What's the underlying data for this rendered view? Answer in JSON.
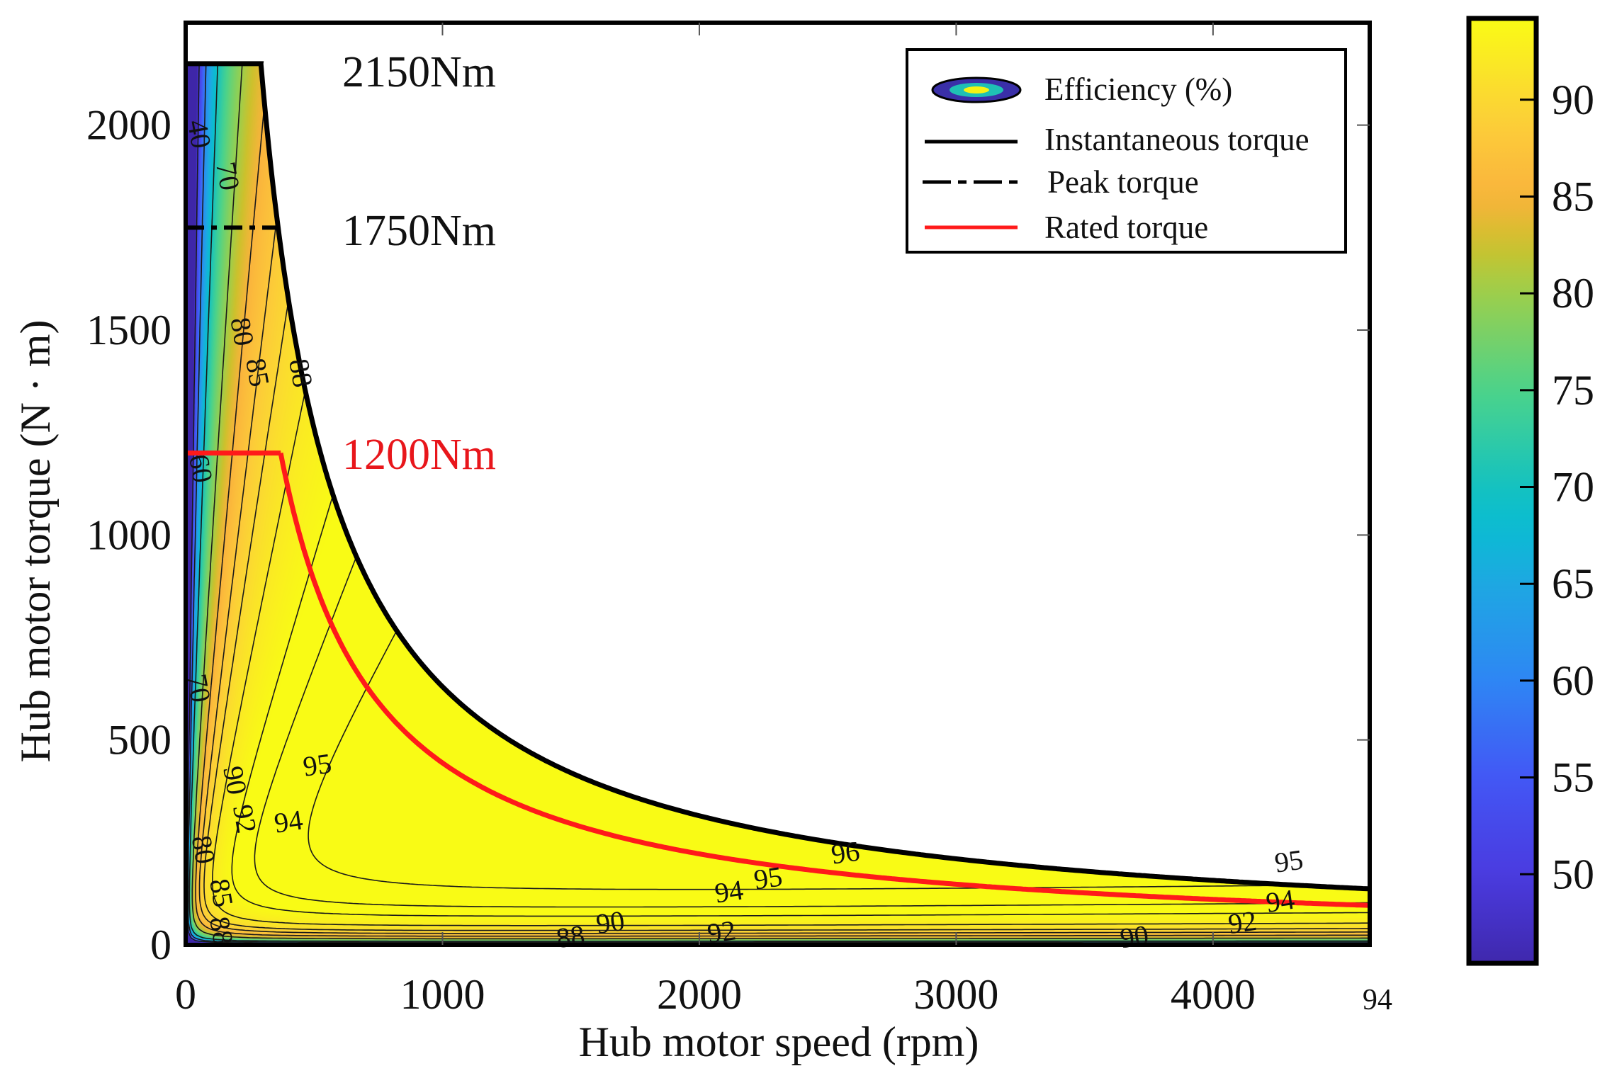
{
  "chart_data": {
    "type": "heatmap",
    "subtype": "efficiency-contour-map",
    "xlabel": "Hub motor speed (rpm)",
    "ylabel": "Hub motor torque (N · m)",
    "xlim": [
      0,
      4610
    ],
    "ylim": [
      0,
      2250
    ],
    "xticks": [
      0,
      1000,
      2000,
      3000,
      4000
    ],
    "xtick_labels": [
      "0",
      "1000",
      "2000",
      "3000",
      "4000"
    ],
    "yticks": [
      0,
      500,
      1000,
      1500,
      2000
    ],
    "ytick_labels": [
      "0",
      "500",
      "1000",
      "1500",
      "2000"
    ],
    "colorbar": {
      "range": [
        45.4,
        94.2
      ],
      "ticks": [
        50,
        55,
        60,
        65,
        70,
        75,
        80,
        85,
        90
      ],
      "tick_labels": [
        "50",
        "55",
        "60",
        "65",
        "70",
        "75",
        "80",
        "85",
        "90"
      ],
      "colormap": [
        [
          45,
          "#3e26a8"
        ],
        [
          50,
          "#4a3be0"
        ],
        [
          55,
          "#4357f5"
        ],
        [
          60,
          "#2e86f4"
        ],
        [
          65,
          "#1ea8e2"
        ],
        [
          68,
          "#0abcd2"
        ],
        [
          70,
          "#14c2c0"
        ],
        [
          75,
          "#4cd38a"
        ],
        [
          80,
          "#9ccf4c"
        ],
        [
          82.5,
          "#cdc12c"
        ],
        [
          85,
          "#fab33c"
        ],
        [
          88,
          "#fcc83a"
        ],
        [
          90,
          "#fbd832"
        ],
        [
          94.2,
          "#f9fb15"
        ]
      ]
    },
    "contour_levels": [
      50,
      60,
      70,
      80,
      85,
      88,
      90,
      92,
      94,
      95,
      96
    ],
    "contour_labels": [
      {
        "text": "40",
        "n": 20,
        "T": 1977
      },
      {
        "text": "70",
        "n": 153,
        "T": 1902
      },
      {
        "text": "80",
        "n": 209,
        "T": 1495
      },
      {
        "text": "85",
        "n": 269,
        "T": 1437
      },
      {
        "text": "88",
        "n": 349,
        "T": 1394
      },
      {
        "text": "60",
        "n": 48,
        "T": 1161
      },
      {
        "text": "70",
        "n": 40,
        "T": 625
      },
      {
        "text": "95",
        "n": 514,
        "T": 432
      },
      {
        "text": "94",
        "n": 402,
        "T": 294
      },
      {
        "text": "92",
        "n": 241,
        "T": 306
      },
      {
        "text": "90",
        "n": 181,
        "T": 331
      },
      {
        "text": "80",
        "n": 80,
        "T": 231
      },
      {
        "text": "85",
        "n": 128,
        "T": 181
      },
      {
        "text": "88",
        "n": 128,
        "T": 130
      },
      {
        "text": "96",
        "n": 2570,
        "T": 218
      },
      {
        "text": "95",
        "n": 2269,
        "T": 156
      },
      {
        "text": "94",
        "n": 2161,
        "T": 123
      },
      {
        "text": "92",
        "n": 2088,
        "T": 80
      },
      {
        "text": "90",
        "n": 1655,
        "T": 48
      },
      {
        "text": "88",
        "n": 1566,
        "T": 13
      },
      {
        "text": "90",
        "n": 3695,
        "T": 13
      },
      {
        "text": "92",
        "n": 4116,
        "T": 48
      },
      {
        "text": "94",
        "n": 4197,
        "T": 100
      },
      {
        "text": "95",
        "n": 4297,
        "T": 128
      }
    ],
    "stray_label": {
      "text": "94",
      "n": 4640,
      "T": -140
    },
    "series": [
      {
        "name": "Instantaneous torque",
        "color": "#000000",
        "style": "solid",
        "max_torque": 2150,
        "corner_speed": 293,
        "constant_power_TxN": 629950
      },
      {
        "name": "Peak torque",
        "color": "#000000",
        "style": "dash-dot",
        "torque": 1750,
        "end_speed": 360
      },
      {
        "name": "Rated torque",
        "color": "#ff1a1a",
        "style": "solid",
        "torque": 1200,
        "corner_speed": 370,
        "constant_power_TxN": 444000
      }
    ],
    "annotations": [
      {
        "text": "2150Nm",
        "color": "#111111"
      },
      {
        "text": "1750Nm",
        "color": "#111111"
      },
      {
        "text": "1200Nm",
        "color": "#e8161b"
      }
    ],
    "legend": {
      "position": "top-right",
      "entries": [
        "Efficiency (%)",
        "Instantaneous torque",
        "Peak torque",
        "Rated torque"
      ]
    }
  }
}
